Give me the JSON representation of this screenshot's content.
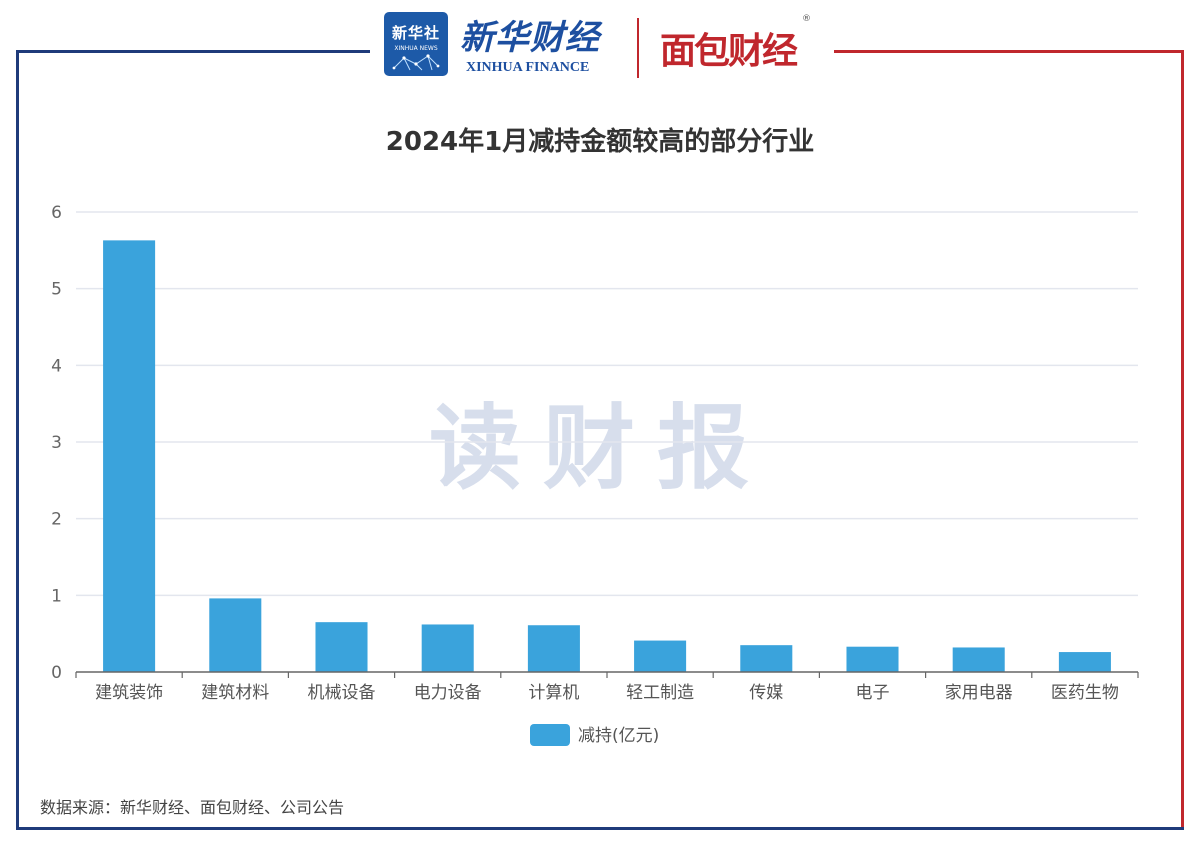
{
  "header": {
    "xinhua_logo_text": "新华社",
    "xinhua_logo_en": "XINHUA NEWS",
    "brand_cn": "新华财经",
    "brand_en": "XINHUA FINANCE",
    "partner_brand": "面包财经",
    "registered_mark": "®"
  },
  "watermark": "读财报",
  "source": "数据来源：新华财经、面包财经、公司公告",
  "colors": {
    "bar": "#3aa3dc",
    "frame_blue": "#1f3b7a",
    "frame_red": "#c0272d",
    "grid": "#e3e6ee",
    "watermark": "#c9d3e6"
  },
  "chart_data": {
    "type": "bar",
    "title": "2024年1月减持金额较高的部分行业",
    "categories": [
      "建筑装饰",
      "建筑材料",
      "机械设备",
      "电力设备",
      "计算机",
      "轻工制造",
      "传媒",
      "电子",
      "家用电器",
      "医药生物"
    ],
    "series": [
      {
        "name": "减持(亿元)",
        "values": [
          5.63,
          0.96,
          0.65,
          0.62,
          0.61,
          0.41,
          0.35,
          0.33,
          0.32,
          0.26
        ]
      }
    ],
    "ylim": [
      0,
      6
    ],
    "yticks": [
      0,
      1,
      2,
      3,
      4,
      5,
      6
    ],
    "grid": true,
    "legend": "bottom-center"
  }
}
